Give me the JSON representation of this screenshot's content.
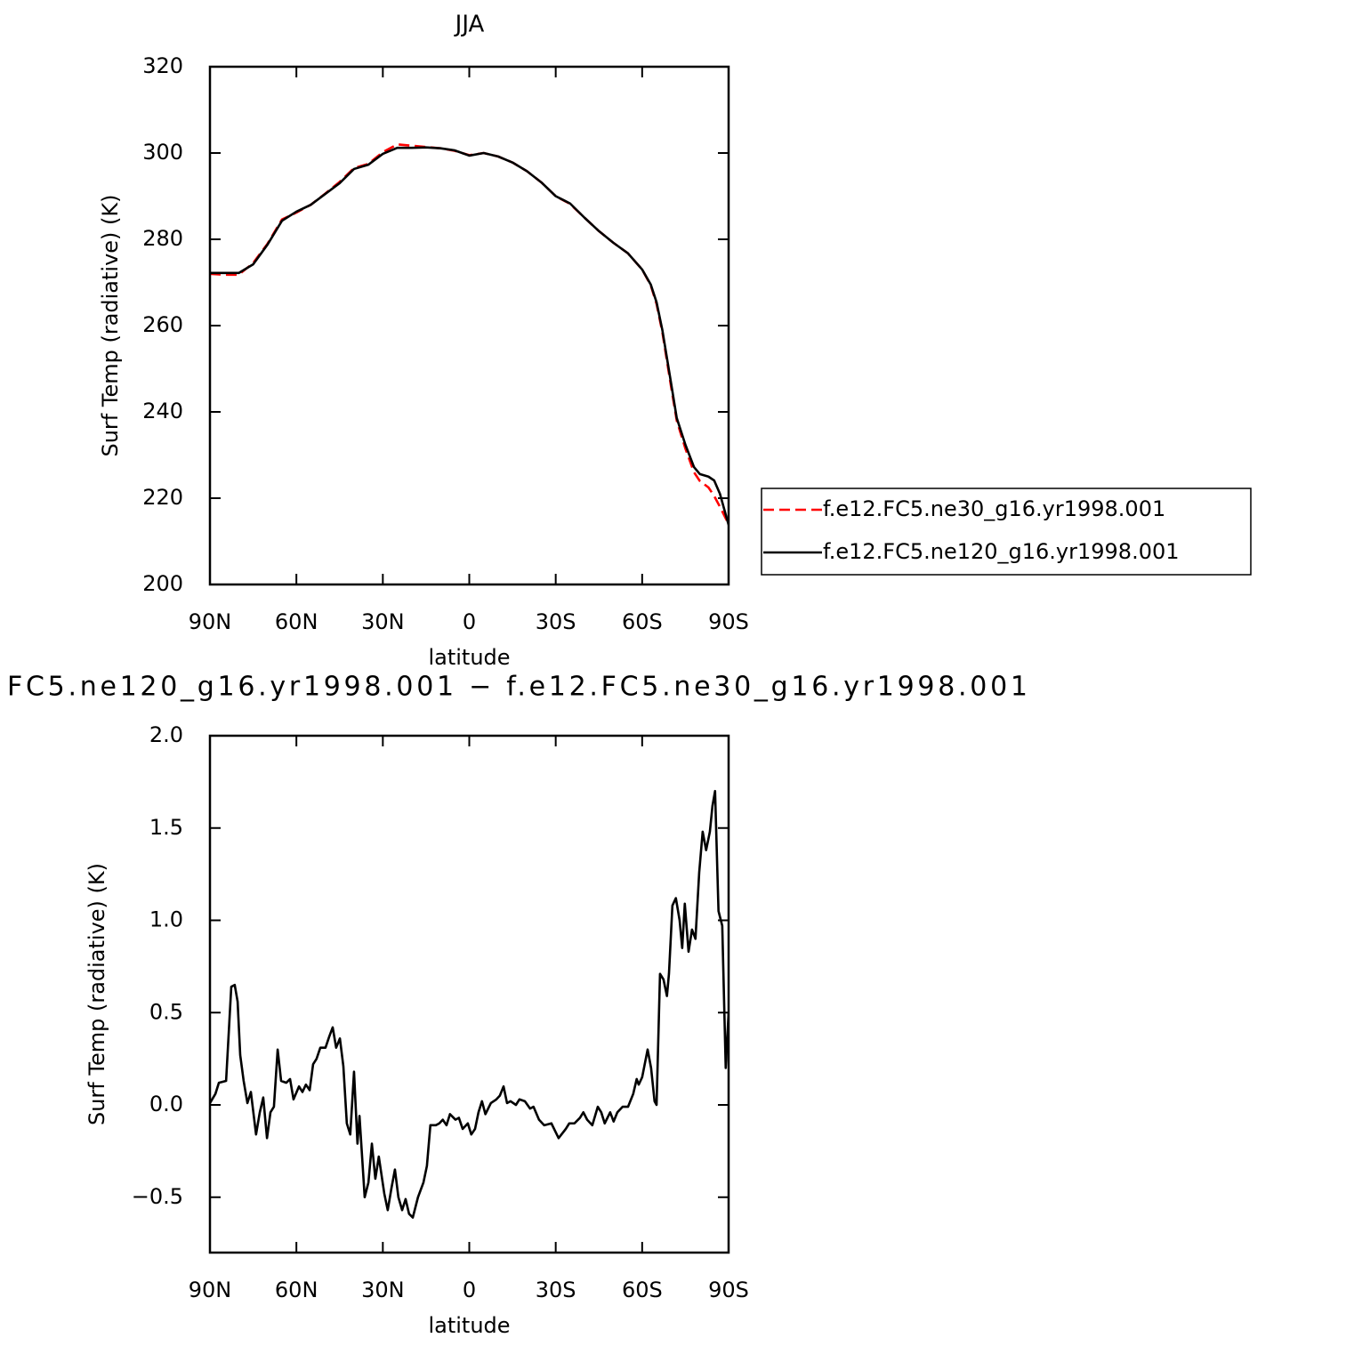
{
  "chart_data": [
    {
      "type": "line",
      "title": "JJA",
      "xlabel": "latitude",
      "ylabel": "Surf Temp (radiative) (K)",
      "x": [
        90,
        85,
        80,
        75,
        70,
        65,
        60,
        55,
        50,
        45,
        40,
        35,
        30,
        25,
        20,
        15,
        10,
        5,
        0,
        -5,
        -10,
        -15,
        -20,
        -25,
        -30,
        -35,
        -40,
        -45,
        -50,
        -55,
        -60,
        -63,
        -65,
        -67,
        -70,
        -72,
        -75,
        -78,
        -80,
        -83,
        -85,
        -87,
        -90
      ],
      "series": [
        {
          "name": "f.e12.FC5.ne30_g16.yr1998.001",
          "color": "#ff0000",
          "dash": "dashed",
          "values": [
            272,
            271.8,
            271.8,
            274.5,
            279,
            284.6,
            286.2,
            288,
            290.6,
            293.3,
            296.5,
            297.5,
            300.2,
            302,
            301.7,
            301.4,
            301.1,
            300.5,
            299.5,
            300,
            299.2,
            297.8,
            295.8,
            293.2,
            290,
            288.2,
            285,
            281.9,
            279.2,
            276.8,
            273,
            269.3,
            265,
            258.5,
            246,
            238,
            231.5,
            226,
            224,
            222.5,
            220.5,
            218,
            214
          ]
        },
        {
          "name": "f.e12.FC5.ne120_g16.yr1998.001",
          "color": "#000000",
          "dash": "solid",
          "values": [
            272.2,
            272.2,
            272.2,
            274.2,
            278.8,
            284.3,
            286.4,
            288,
            290.5,
            293,
            296.3,
            297.3,
            299.8,
            301.2,
            301.2,
            301.3,
            301.1,
            300.6,
            299.4,
            300,
            299.2,
            297.8,
            295.8,
            293.2,
            290,
            288.3,
            285,
            281.9,
            279.2,
            276.8,
            273,
            269.5,
            265.4,
            259,
            246.8,
            238.6,
            232.4,
            227.2,
            225.6,
            225,
            224.1,
            221,
            213.8
          ]
        }
      ],
      "xlim": [
        90,
        -90
      ],
      "xticks": [
        {
          "value": 90,
          "label": "90N"
        },
        {
          "value": 60,
          "label": "60N"
        },
        {
          "value": 30,
          "label": "30N"
        },
        0,
        {
          "value": -30,
          "label": "30S"
        },
        {
          "value": -60,
          "label": "60S"
        },
        {
          "value": -90,
          "label": "90S"
        }
      ],
      "ylim": [
        200,
        320
      ],
      "yticks": [
        200,
        220,
        240,
        260,
        280,
        300,
        320
      ],
      "legend": "right"
    },
    {
      "type": "line",
      "title": "FC5.ne120_g16.yr1998.001 − f.e12.FC5.ne30_g16.yr1998.001",
      "xlabel": "latitude",
      "ylabel": "Surf Temp (radiative) (K)",
      "x": [
        90,
        88.1,
        86.9,
        84.4,
        82.6,
        81.4,
        80.4,
        79.5,
        78.3,
        77,
        75.8,
        74,
        72.7,
        71.5,
        70.2,
        69,
        67.8,
        66.5,
        65.3,
        63.5,
        62.2,
        61,
        59.1,
        57.9,
        56.7,
        55.4,
        54.2,
        53,
        51.7,
        49.9,
        48.6,
        47.4,
        46.2,
        44.9,
        43.7,
        42.5,
        41.3,
        40,
        38.8,
        38.1,
        36.3,
        35,
        33.8,
        32.6,
        31.4,
        29.5,
        28.3,
        27,
        25.8,
        24.6,
        23.3,
        22.1,
        20.9,
        19.6,
        17.8,
        15.9,
        14.7,
        13.5,
        11.6,
        10.4,
        9.2,
        7.9,
        6.7,
        4.8,
        3.6,
        2.3,
        0.5,
        -0.7,
        -2,
        -3.2,
        -4.4,
        -5.6,
        -7.5,
        -9.4,
        -10.6,
        -11.9,
        -13.1,
        -14.3,
        -16.2,
        -17.4,
        -19.3,
        -21.1,
        -22.3,
        -24.2,
        -26,
        -28.5,
        -31,
        -33.5,
        -34.7,
        -36.5,
        -38.4,
        -39.6,
        -40.9,
        -42.7,
        -44.6,
        -45.8,
        -47,
        -48.9,
        -50.1,
        -51.4,
        -53.2,
        -55.1,
        -56.9,
        -58.1,
        -58.8,
        -60,
        -61.9,
        -63.1,
        -64.3,
        -65,
        -66.2,
        -67.4,
        -68.6,
        -69.3,
        -70.5,
        -71.7,
        -73,
        -73.9,
        -74.8,
        -76.1,
        -77.3,
        -78.5,
        -79.8,
        -81,
        -82.2,
        -83.5,
        -84.4,
        -85.3,
        -86.5,
        -87.8,
        -89,
        -90
      ],
      "series": [
        {
          "color": "#000000",
          "dash": "solid",
          "values": [
            0.01,
            0.06,
            0.12,
            0.13,
            0.64,
            0.65,
            0.56,
            0.27,
            0.13,
            0.01,
            0.07,
            -0.16,
            -0.04,
            0.04,
            -0.18,
            -0.04,
            -0.01,
            0.3,
            0.13,
            0.12,
            0.14,
            0.03,
            0.1,
            0.07,
            0.11,
            0.08,
            0.22,
            0.25,
            0.31,
            0.31,
            0.37,
            0.42,
            0.31,
            0.36,
            0.21,
            -0.1,
            -0.16,
            0.18,
            -0.21,
            -0.06,
            -0.5,
            -0.42,
            -0.21,
            -0.4,
            -0.28,
            -0.48,
            -0.57,
            -0.45,
            -0.35,
            -0.5,
            -0.57,
            -0.51,
            -0.59,
            -0.61,
            -0.5,
            -0.42,
            -0.33,
            -0.11,
            -0.11,
            -0.1,
            -0.08,
            -0.11,
            -0.05,
            -0.08,
            -0.07,
            -0.13,
            -0.1,
            -0.16,
            -0.13,
            -0.04,
            0.02,
            -0.05,
            0.01,
            0.03,
            0.05,
            0.1,
            0.01,
            0.02,
            0,
            0.03,
            0.02,
            -0.02,
            -0.01,
            -0.08,
            -0.11,
            -0.1,
            -0.18,
            -0.13,
            -0.1,
            -0.1,
            -0.07,
            -0.04,
            -0.08,
            -0.11,
            -0.01,
            -0.04,
            -0.1,
            -0.04,
            -0.09,
            -0.04,
            -0.01,
            -0.01,
            0.06,
            0.14,
            0.11,
            0.15,
            0.3,
            0.2,
            0.02,
            0,
            0.71,
            0.68,
            0.59,
            0.71,
            1.08,
            1.12,
            1,
            0.85,
            1.09,
            0.83,
            0.95,
            0.9,
            1.26,
            1.48,
            1.38,
            1.48,
            1.62,
            1.7,
            1.05,
            0.97,
            0.2,
            0.5
          ]
        }
      ],
      "xlim": [
        90,
        -90
      ],
      "xticks": [
        {
          "value": 90,
          "label": "90N"
        },
        {
          "value": 60,
          "label": "60N"
        },
        {
          "value": 30,
          "label": "30N"
        },
        0,
        {
          "value": -30,
          "label": "30S"
        },
        {
          "value": -60,
          "label": "60S"
        },
        {
          "value": -90,
          "label": "90S"
        }
      ],
      "ylim": [
        -0.8,
        2.0
      ],
      "yticks": [
        {
          "value": -0.5,
          "label": "−0.5"
        },
        {
          "value": 0,
          "label": "0.0"
        },
        0.5,
        {
          "value": 1,
          "label": "1.0"
        },
        1.5,
        {
          "value": 2,
          "label": "2.0"
        }
      ]
    }
  ]
}
